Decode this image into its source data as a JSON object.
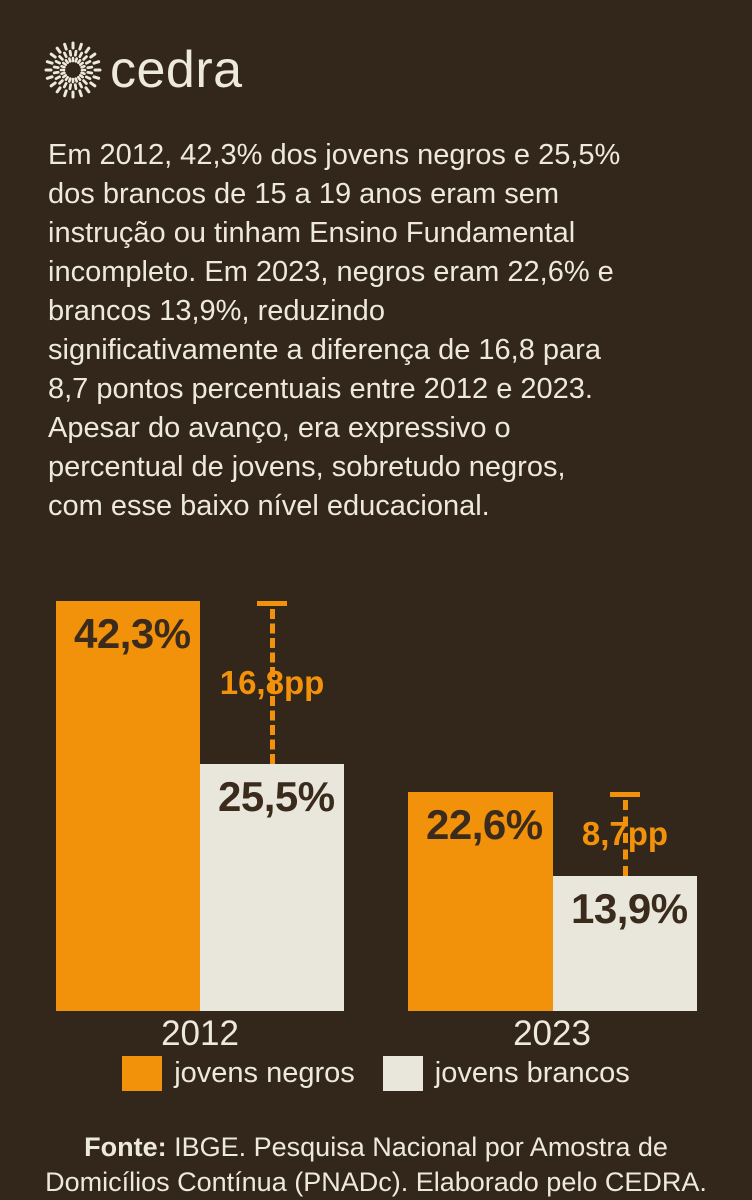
{
  "brand": {
    "name": "cedra"
  },
  "intro": {
    "lines": [
      "Em 2012, 42,3% dos jovens negros e 25,5%",
      "dos brancos de 15 a 19 anos eram sem",
      "instrução ou tinham Ensino Fundamental",
      "incompleto. Em 2023, negros eram 22,6% e",
      "brancos 13,9%, reduzindo",
      "significativamente a diferença de 16,8 para",
      "8,7 pontos percentuais entre 2012 e 2023.",
      "Apesar do avanço, era expressivo o",
      "percentual de jovens, sobretudo negros,",
      "com esse baixo nível educacional."
    ]
  },
  "chart_data": {
    "type": "bar",
    "categories": [
      "2012",
      "2023"
    ],
    "series": [
      {
        "name": "jovens negros",
        "color": "#F2920B",
        "values": [
          42.3,
          22.6
        ],
        "labels": [
          "42,3%",
          "22,6%"
        ]
      },
      {
        "name": "jovens brancos",
        "color": "#E9E7DC",
        "values": [
          25.5,
          13.9
        ],
        "labels": [
          "25,5%",
          "13,9%"
        ]
      }
    ],
    "gap_annotations": [
      {
        "category": "2012",
        "value_pp": 16.8,
        "label": "16,8pp"
      },
      {
        "category": "2023",
        "value_pp": 8.7,
        "label": "8,7pp"
      }
    ],
    "ylim": [
      0,
      45
    ],
    "grid": false,
    "legend_position": "bottom",
    "value_label_color": "#3B2B1D",
    "annotation_color": "#F2920B"
  },
  "legend": {
    "items": [
      {
        "label": "jovens negros",
        "color": "#F2920B"
      },
      {
        "label": "jovens brancos",
        "color": "#E9E7DC"
      }
    ]
  },
  "footer": {
    "source_label": "Fonte:",
    "source_line1": " IBGE. Pesquisa Nacional por Amostra de",
    "source_line2": "Domicílios Contínua (PNADc). Elaborado pelo CEDRA."
  },
  "colors": {
    "background": "#33261B",
    "text_cream": "#EDE9DC",
    "accent_orange": "#F2920B",
    "bar_cream": "#E9E7DC",
    "bar_label_dark": "#3B2B1D"
  }
}
